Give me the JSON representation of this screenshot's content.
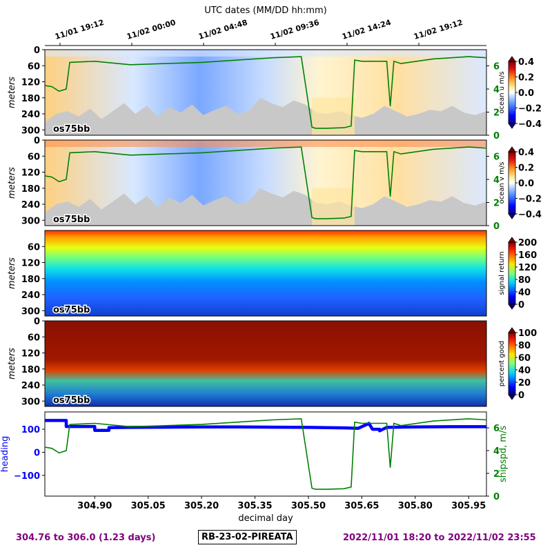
{
  "figure": {
    "top_axis_title": "UTC dates (MM/DD hh:mm)",
    "top_ticks": [
      "11/01 19:12",
      "11/02 00:00",
      "11/02 04:48",
      "11/02 09:36",
      "11/02 14:24",
      "11/02 19:12"
    ],
    "x_label": "decimal day",
    "depth_label": "meters",
    "instrument_tag": "os75bb",
    "footer_left": "304.76 to 306.0 (1.23 days)",
    "footer_center": "RB-23-02-PIREATA",
    "footer_right": "2022/11/01 18:20 to 2022/11/02 23:55",
    "colors": {
      "purple": "#800080",
      "green": "#008000",
      "blue": "#0000ff",
      "shadow": "#c8c8c8"
    }
  },
  "chart_data": [
    {
      "type": "heatmap",
      "name": "ocean u velocity",
      "colorbar_label": "ocean u m/s",
      "colorbar_ticks": [
        "0.4",
        "0.2",
        "0.0",
        "−0.2",
        "−0.4"
      ],
      "clim": [
        -0.4,
        0.4
      ],
      "colormap": "seismic-like (blue-white-red)",
      "ylabel": "meters",
      "yticks": [
        "0",
        "60",
        "120",
        "180",
        "240",
        "300"
      ],
      "ylim": [
        320,
        0
      ],
      "right_axis_ticks": [
        "0",
        "2",
        "4",
        "6"
      ],
      "right_axis_color": "green",
      "overlay": "ship speed, m/s",
      "tag": "os75bb"
    },
    {
      "type": "heatmap",
      "name": "ocean v velocity",
      "colorbar_label": "ocean v m/s",
      "colorbar_ticks": [
        "0.4",
        "0.2",
        "0.0",
        "−0.2",
        "−0.4"
      ],
      "clim": [
        -0.4,
        0.4
      ],
      "colormap": "seismic-like (blue-white-red)",
      "ylabel": "meters",
      "yticks": [
        "0",
        "60",
        "120",
        "180",
        "240",
        "300"
      ],
      "ylim": [
        320,
        0
      ],
      "right_axis_ticks": [
        "0",
        "2",
        "4",
        "6"
      ],
      "right_axis_color": "green",
      "overlay": "ship speed, m/s",
      "tag": "os75bb"
    },
    {
      "type": "heatmap",
      "name": "signal return",
      "colorbar_label": "signal return",
      "colorbar_ticks": [
        "200",
        "160",
        "120",
        "80",
        "40",
        "0"
      ],
      "clim": [
        0,
        200
      ],
      "colormap": "jet",
      "ylabel": "meters",
      "yticks": [
        "60",
        "120",
        "180",
        "240",
        "300"
      ],
      "ylim": [
        320,
        0
      ],
      "tag": "os75bb"
    },
    {
      "type": "heatmap",
      "name": "percent good",
      "colorbar_label": "percent good",
      "colorbar_ticks": [
        "100",
        "80",
        "60",
        "40",
        "20",
        "0"
      ],
      "clim": [
        0,
        100
      ],
      "colormap": "jet",
      "ylabel": "meters",
      "yticks": [
        "0",
        "60",
        "120",
        "180",
        "240",
        "300"
      ],
      "ylim": [
        320,
        0
      ],
      "tag": "os75bb"
    },
    {
      "type": "line",
      "name": "heading and ship speed",
      "xlabel": "decimal day",
      "xlim": [
        304.76,
        306.0
      ],
      "xticks": [
        "304.90",
        "305.05",
        "305.20",
        "305.35",
        "305.50",
        "305.65",
        "305.80",
        "305.95"
      ],
      "left_axis": {
        "label": "heading",
        "ticks": [
          "100",
          "0",
          "−100"
        ],
        "ylim": [
          -190,
          175
        ],
        "color": "blue"
      },
      "right_axis": {
        "label": "shipspd, m/s",
        "ticks": [
          "6",
          "4",
          "2",
          "0"
        ],
        "ylim": [
          0,
          7.4
        ],
        "color": "green"
      },
      "series": [
        {
          "name": "heading",
          "axis": "left",
          "x": [
            304.76,
            304.82,
            304.82,
            304.9,
            304.9,
            304.94,
            304.94,
            305.0,
            305.1,
            305.2,
            305.3,
            305.4,
            305.5,
            305.6,
            305.64,
            305.67,
            305.68,
            305.7,
            305.7,
            305.72,
            305.8,
            305.9,
            306.0
          ],
          "y": [
            138,
            138,
            112,
            112,
            95,
            95,
            107,
            108,
            109,
            110,
            110,
            109,
            108,
            106,
            104,
            125,
            100,
            100,
            93,
            108,
            110,
            111,
            111
          ]
        },
        {
          "name": "ship speed",
          "axis": "right",
          "x": [
            304.76,
            304.78,
            304.8,
            304.82,
            304.83,
            304.9,
            305.0,
            305.1,
            305.2,
            305.3,
            305.4,
            305.48,
            305.51,
            305.52,
            305.55,
            305.6,
            305.62,
            305.63,
            305.65,
            305.72,
            305.73,
            305.74,
            305.76,
            305.85,
            305.95,
            306.0
          ],
          "y": [
            4.3,
            4.2,
            3.8,
            4.0,
            6.3,
            6.4,
            6.1,
            6.2,
            6.3,
            6.5,
            6.7,
            6.8,
            0.7,
            0.6,
            0.6,
            0.65,
            0.8,
            6.5,
            6.4,
            6.4,
            2.5,
            6.4,
            6.2,
            6.6,
            6.8,
            6.7
          ]
        }
      ]
    }
  ]
}
